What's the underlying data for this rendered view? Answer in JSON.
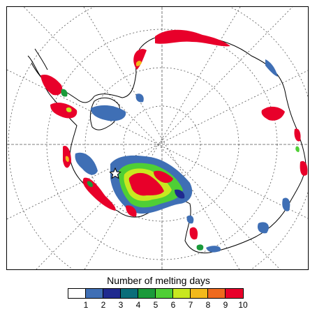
{
  "legend": {
    "title": "Number of melting days",
    "colors": [
      "#ffffff",
      "#3f6fb5",
      "#1f2a8f",
      "#0a6e7a",
      "#1a9a3a",
      "#4fcf35",
      "#c8e820",
      "#f2b91b",
      "#ef6a1e",
      "#e8002a"
    ],
    "tick_labels": [
      "1",
      "2",
      "3",
      "4",
      "5",
      "6",
      "7",
      "8",
      "9",
      "10"
    ]
  },
  "map": {
    "projection": "polar-stereographic-south",
    "graticule": "dotted",
    "marker": "star"
  }
}
